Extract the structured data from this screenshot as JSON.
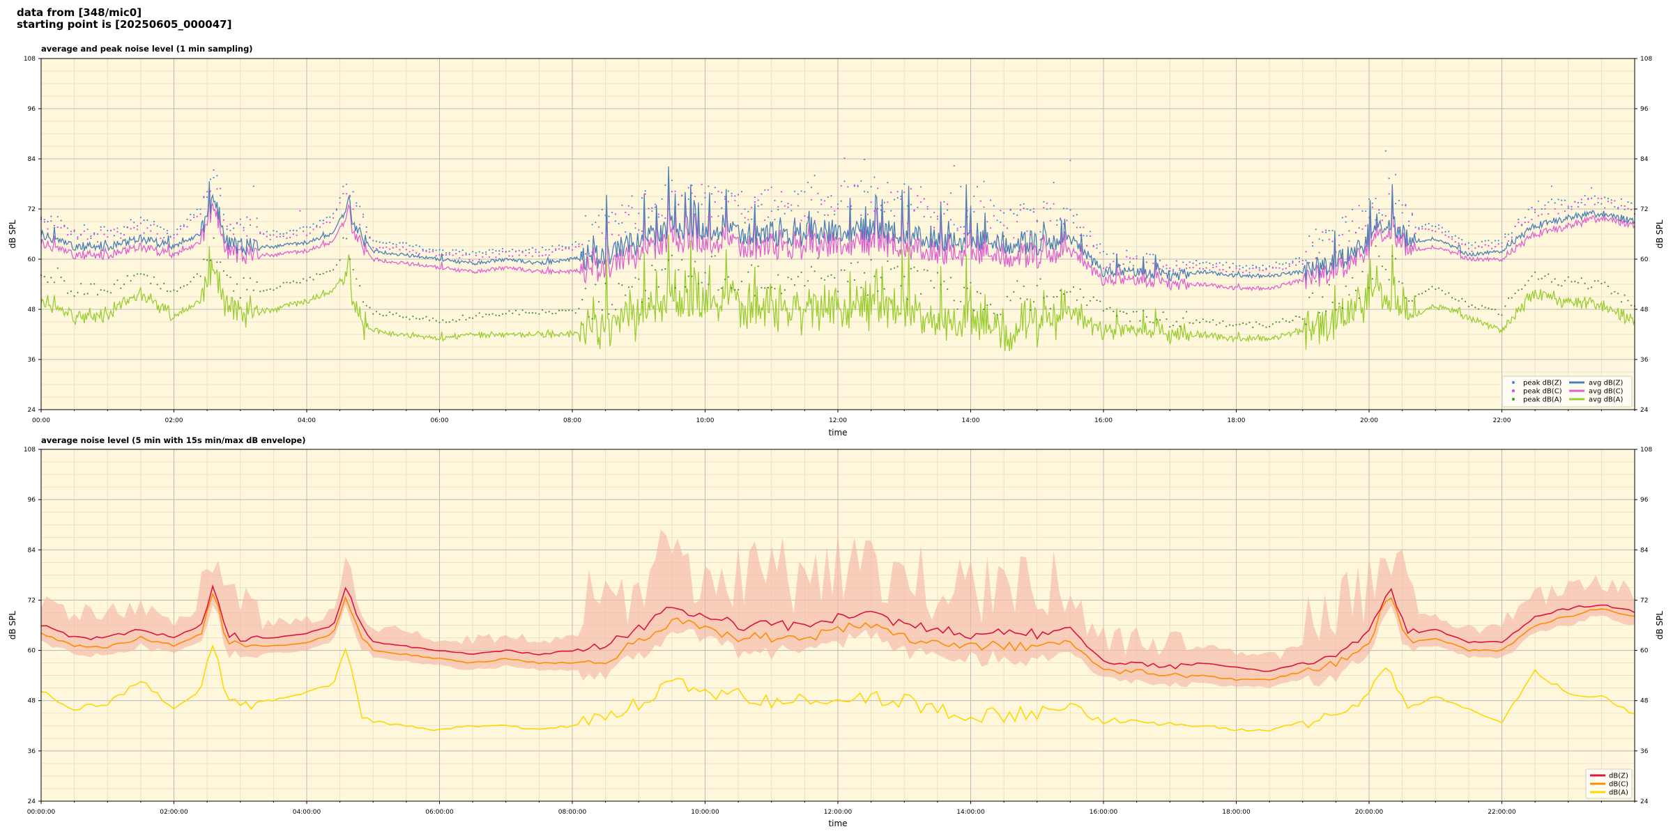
{
  "header": {
    "line1": "data from [348/mic0]",
    "line2": "starting point is [20250605_000047]"
  },
  "colors": {
    "background": "#fff7dc",
    "grid_major": "#b8b8b8",
    "grid_minor": "#e3dcc4",
    "zpeak": "#3a8fd8",
    "cpeak": "#e040e0",
    "apeak": "#4c8c3c",
    "zavg": "#4a7fb5",
    "cavg": "#e060d0",
    "aavg": "#9acd32",
    "z5": "#dc143c",
    "c5": "#ff8c00",
    "a5": "#ffd700",
    "envelope": "#f5b8a8"
  },
  "chart_data": [
    {
      "type": "line",
      "title": "average and peak noise level (1 min sampling)",
      "xlabel": "time",
      "ylabel": "dB SPL",
      "ylim": [
        24,
        108
      ],
      "yticks": [
        24,
        36,
        48,
        60,
        72,
        84,
        96,
        108
      ],
      "xlim": [
        0,
        24
      ],
      "xticks": [
        0,
        2,
        4,
        6,
        8,
        10,
        12,
        14,
        16,
        18,
        20,
        22
      ],
      "xtick_labels": [
        "00:00",
        "02:00",
        "04:00",
        "06:00",
        "08:00",
        "10:00",
        "12:00",
        "14:00",
        "16:00",
        "18:00",
        "20:00",
        "22:00"
      ],
      "grid": true,
      "legend_position": "bottom-right",
      "legend": [
        "peak dB(Z)",
        "peak dB(C)",
        "peak dB(A)",
        "avg dB(Z)",
        "avg dB(C)",
        "avg dB(A)"
      ],
      "x": [
        0,
        0.5,
        1,
        1.5,
        2,
        2.4,
        2.6,
        2.8,
        3,
        3.5,
        4,
        4.4,
        4.6,
        4.8,
        5,
        6,
        6.5,
        7,
        7.5,
        8,
        8.5,
        9,
        9.5,
        10,
        10.5,
        11,
        11.5,
        12,
        12.5,
        13,
        13.5,
        14,
        14.5,
        15,
        15.5,
        16,
        16.5,
        17,
        17.5,
        18,
        18.5,
        19,
        19.5,
        20,
        20.3,
        20.6,
        21,
        21.5,
        22,
        22.5,
        23,
        23.5,
        24
      ],
      "series": [
        {
          "name": "avg dB(Z)",
          "values": [
            66,
            63,
            63,
            65,
            63,
            66,
            75,
            64,
            63,
            63,
            64,
            66,
            73,
            66,
            62,
            60,
            59,
            60,
            59,
            60,
            61,
            64,
            68,
            67,
            66,
            66,
            66,
            67,
            67,
            66,
            65,
            64,
            64,
            64,
            65,
            57,
            57,
            56,
            57,
            56,
            56,
            57,
            59,
            64,
            70,
            64,
            65,
            61,
            62,
            68,
            70,
            71,
            69
          ]
        },
        {
          "name": "avg dB(C)",
          "values": [
            64,
            61,
            61,
            63,
            61,
            64,
            73,
            62,
            61,
            61,
            62,
            64,
            71,
            64,
            60,
            58,
            57,
            58,
            57,
            57,
            58,
            61,
            65,
            64,
            63,
            63,
            63,
            64,
            64,
            63,
            62,
            61,
            61,
            61,
            62,
            55,
            55,
            54,
            54,
            53,
            53,
            55,
            57,
            62,
            68,
            62,
            63,
            60,
            60,
            66,
            68,
            70,
            68
          ]
        },
        {
          "name": "avg dB(A)",
          "values": [
            50,
            46,
            47,
            52,
            46,
            50,
            58,
            49,
            47,
            48,
            50,
            52,
            58,
            45,
            43,
            41,
            42,
            42,
            42,
            42,
            44,
            47,
            50,
            50,
            49,
            48,
            48,
            49,
            49,
            48,
            46,
            45,
            44,
            45,
            47,
            43,
            43,
            42,
            42,
            41,
            41,
            43,
            45,
            50,
            53,
            46,
            49,
            46,
            43,
            52,
            50,
            49,
            45
          ]
        },
        {
          "name": "peak dB(Z)",
          "values": [
            70,
            66,
            66,
            68,
            66,
            72,
            80,
            68,
            67,
            66,
            67,
            70,
            78,
            70,
            64,
            62,
            61,
            62,
            62,
            63,
            66,
            70,
            74,
            73,
            72,
            72,
            72,
            73,
            74,
            72,
            70,
            69,
            68,
            68,
            70,
            60,
            59,
            58,
            59,
            58,
            58,
            60,
            64,
            70,
            74,
            67,
            68,
            63,
            64,
            72,
            73,
            74,
            72
          ]
        },
        {
          "name": "peak dB(C)",
          "values": [
            69,
            65,
            65,
            67,
            65,
            71,
            79,
            67,
            66,
            65,
            66,
            69,
            77,
            69,
            63,
            61,
            60,
            61,
            61,
            62,
            65,
            69,
            73,
            72,
            71,
            71,
            71,
            72,
            73,
            71,
            69,
            68,
            67,
            67,
            69,
            59,
            58,
            57,
            58,
            57,
            57,
            59,
            63,
            69,
            73,
            66,
            67,
            62,
            63,
            71,
            72,
            73,
            71
          ]
        },
        {
          "name": "peak dB(A)",
          "values": [
            56,
            52,
            52,
            56,
            52,
            56,
            62,
            54,
            52,
            53,
            55,
            57,
            63,
            50,
            47,
            45,
            46,
            47,
            47,
            47,
            49,
            52,
            55,
            55,
            54,
            53,
            53,
            54,
            54,
            53,
            51,
            50,
            49,
            50,
            52,
            47,
            46,
            45,
            45,
            44,
            44,
            46,
            49,
            54,
            57,
            50,
            53,
            49,
            47,
            56,
            54,
            53,
            49
          ]
        }
      ]
    },
    {
      "type": "line",
      "title": "average noise level (5 min with 15s min/max dB envelope)",
      "xlabel": "time",
      "ylabel": "dB SPL",
      "ylim": [
        24,
        108
      ],
      "yticks": [
        24,
        36,
        48,
        60,
        72,
        84,
        96,
        108
      ],
      "xlim": [
        0,
        24
      ],
      "xticks": [
        0,
        2,
        4,
        6,
        8,
        10,
        12,
        14,
        16,
        18,
        20,
        22
      ],
      "xtick_labels": [
        "00:00:00",
        "02:00:00",
        "04:00:00",
        "06:00:00",
        "08:00:00",
        "10:00:00",
        "12:00:00",
        "14:00:00",
        "16:00:00",
        "18:00:00",
        "20:00:00",
        "22:00:00"
      ],
      "grid": true,
      "legend_position": "bottom-right",
      "legend": [
        "dB(Z)",
        "dB(C)",
        "dB(A)"
      ],
      "x": [
        0,
        0.5,
        1,
        1.5,
        2,
        2.4,
        2.6,
        2.8,
        3,
        3.5,
        4,
        4.4,
        4.6,
        4.8,
        5,
        6,
        6.5,
        7,
        7.5,
        8,
        8.5,
        9,
        9.5,
        10,
        10.5,
        11,
        11.5,
        12,
        12.5,
        13,
        13.5,
        14,
        14.5,
        15,
        15.5,
        16,
        16.5,
        17,
        17.5,
        18,
        18.5,
        19,
        19.5,
        20,
        20.3,
        20.6,
        21,
        21.5,
        22,
        22.5,
        23,
        23.5,
        24
      ],
      "series": [
        {
          "name": "dB(Z)",
          "values": [
            66,
            63,
            63,
            65,
            63,
            66,
            76,
            64,
            63,
            63,
            64,
            66,
            75,
            66,
            62,
            60,
            59,
            60,
            59,
            60,
            61,
            65,
            70,
            68,
            66,
            66,
            66,
            68,
            69,
            66,
            65,
            64,
            64,
            64,
            65,
            57,
            57,
            56,
            57,
            56,
            55,
            57,
            59,
            64,
            76,
            64,
            65,
            62,
            62,
            68,
            70,
            71,
            69
          ]
        },
        {
          "name": "dB(C)",
          "values": [
            64,
            61,
            61,
            63,
            61,
            64,
            74,
            62,
            61,
            61,
            62,
            64,
            73,
            64,
            60,
            58,
            57,
            58,
            57,
            57,
            58,
            62,
            67,
            65,
            63,
            63,
            63,
            65,
            66,
            63,
            62,
            61,
            61,
            61,
            62,
            55,
            55,
            54,
            54,
            53,
            53,
            55,
            57,
            62,
            74,
            62,
            63,
            60,
            60,
            66,
            68,
            70,
            68
          ]
        },
        {
          "name": "dB(A)",
          "values": [
            50,
            46,
            47,
            53,
            46,
            50,
            62,
            49,
            47,
            48,
            50,
            52,
            62,
            45,
            43,
            41,
            42,
            42,
            41,
            42,
            44,
            47,
            52,
            50,
            49,
            48,
            48,
            49,
            49,
            48,
            46,
            45,
            44,
            45,
            47,
            43,
            43,
            42,
            42,
            41,
            41,
            43,
            45,
            50,
            56,
            46,
            49,
            46,
            43,
            55,
            50,
            49,
            45
          ]
        }
      ]
    }
  ]
}
